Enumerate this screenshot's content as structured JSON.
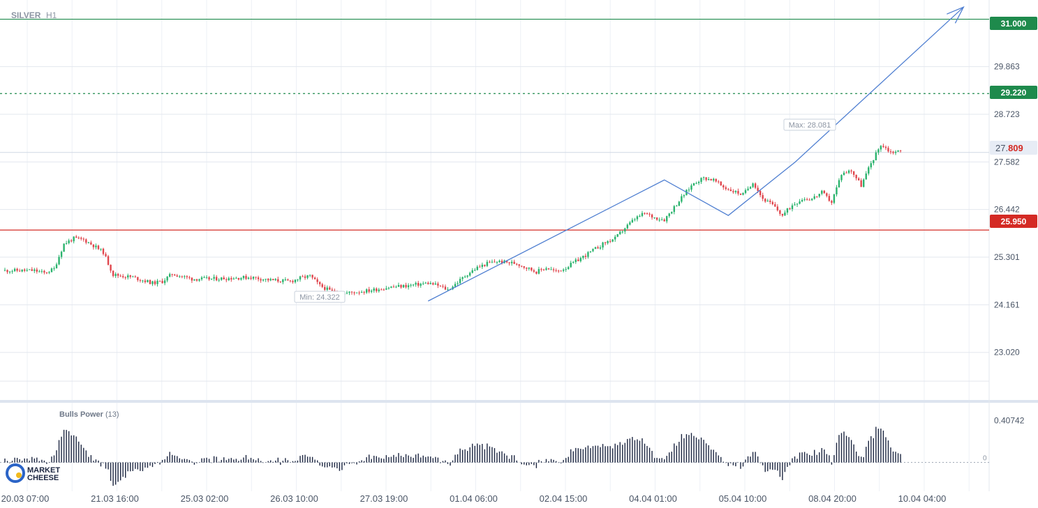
{
  "chart_data": {
    "type": "candlestick",
    "symbol": "SILVER",
    "timeframe": "H1",
    "x_labels": [
      "20.03 07:00",
      "21.03 16:00",
      "25.03 02:00",
      "26.03 10:00",
      "27.03 19:00",
      "01.04 06:00",
      "02.04 15:00",
      "04.04 01:00",
      "05.04 10:00",
      "08.04 20:00",
      "10.04 04:00"
    ],
    "y_ticks": [
      "29.863",
      "28.723",
      "27.582",
      "26.442",
      "25.301",
      "24.161",
      "23.020"
    ],
    "ylim": [
      21.88,
      31.46
    ],
    "current_price": {
      "main": "27.",
      "highlight": "809",
      "value": 27.809
    },
    "levels": [
      {
        "label": "31.000",
        "value": 31.0,
        "style": "solid",
        "color": "#1e8a4c"
      },
      {
        "label": "29.220",
        "value": 29.22,
        "style": "dashed",
        "color": "#1e8a4c"
      },
      {
        "label": "25.950",
        "value": 25.95,
        "style": "solid",
        "color": "#d42a24"
      }
    ],
    "max_label": "Max: 28.081",
    "min_label": "Min: 24.322",
    "anchors": [
      [
        0,
        24.98
      ],
      [
        3,
        24.98
      ],
      [
        4,
        24.92
      ],
      [
        5,
        25.02
      ],
      [
        6,
        25.62
      ],
      [
        7,
        25.75
      ],
      [
        8,
        25.72
      ],
      [
        9,
        25.58
      ],
      [
        10,
        25.42
      ],
      [
        11,
        24.88
      ],
      [
        13,
        24.82
      ],
      [
        15,
        24.68
      ],
      [
        16,
        24.72
      ],
      [
        17,
        24.9
      ],
      [
        19,
        24.78
      ],
      [
        21,
        24.78
      ],
      [
        23,
        24.8
      ],
      [
        25,
        24.82
      ],
      [
        27,
        24.75
      ],
      [
        29,
        24.72
      ],
      [
        30,
        24.8
      ],
      [
        31,
        24.85
      ],
      [
        32,
        24.62
      ],
      [
        33,
        24.5
      ],
      [
        34,
        24.42
      ],
      [
        35,
        24.45
      ],
      [
        37,
        24.5
      ],
      [
        39,
        24.58
      ],
      [
        41,
        24.62
      ],
      [
        43,
        24.68
      ],
      [
        44,
        24.62
      ],
      [
        45,
        24.52
      ],
      [
        46,
        24.7
      ],
      [
        47,
        24.9
      ],
      [
        48,
        25.05
      ],
      [
        49,
        25.15
      ],
      [
        50,
        25.2
      ],
      [
        52,
        25.15
      ],
      [
        53,
        25.05
      ],
      [
        54,
        24.95
      ],
      [
        55,
        25.05
      ],
      [
        56,
        24.95
      ],
      [
        57,
        25.05
      ],
      [
        58,
        25.2
      ],
      [
        59,
        25.35
      ],
      [
        60,
        25.5
      ],
      [
        61,
        25.65
      ],
      [
        62,
        25.75
      ],
      [
        63,
        26.0
      ],
      [
        64,
        26.22
      ],
      [
        65,
        26.35
      ],
      [
        66,
        26.25
      ],
      [
        67,
        26.2
      ],
      [
        68,
        26.5
      ],
      [
        69,
        26.8
      ],
      [
        70,
        27.08
      ],
      [
        71,
        27.2
      ],
      [
        72,
        27.15
      ],
      [
        73,
        26.98
      ],
      [
        74,
        26.88
      ],
      [
        75,
        26.8
      ],
      [
        76,
        27.1
      ],
      [
        77,
        26.7
      ],
      [
        78,
        26.55
      ],
      [
        79,
        26.3
      ],
      [
        80,
        26.55
      ],
      [
        81,
        26.7
      ],
      [
        82,
        26.7
      ],
      [
        83,
        26.85
      ],
      [
        84,
        26.62
      ],
      [
        85,
        27.3
      ],
      [
        86,
        27.38
      ],
      [
        87,
        27.02
      ],
      [
        88,
        27.55
      ],
      [
        89,
        28.0
      ],
      [
        90,
        27.82
      ],
      [
        91,
        27.84
      ]
    ],
    "bulls_power": {
      "title": "Bulls Power",
      "param": "(13)",
      "y_tick": "0.40742",
      "zero_label": "0",
      "ylim": [
        -0.28,
        0.58
      ]
    }
  },
  "branding": {
    "logo_line1": "MARKET",
    "logo_line2": "CHEESE"
  }
}
